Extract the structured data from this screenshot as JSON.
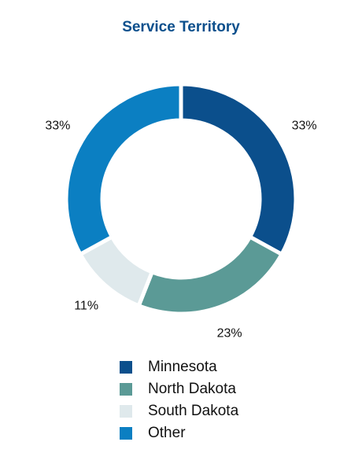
{
  "chart_data": {
    "type": "pie",
    "title": "Service Territory",
    "categories": [
      "Minnesota",
      "North Dakota",
      "South Dakota",
      "Other"
    ],
    "values": [
      33,
      23,
      11,
      33
    ],
    "data_labels": [
      "33%",
      "23%",
      "11%",
      "33%"
    ],
    "colors": [
      "#0b4f8c",
      "#5b9a96",
      "#dfe9ec",
      "#0b7fc2"
    ],
    "donut": true,
    "legend_position": "bottom",
    "start_angle_deg": 0,
    "direction": "clockwise"
  },
  "legend": {
    "items": [
      {
        "label": "Minnesota",
        "color": "#0b4f8c"
      },
      {
        "label": "North Dakota",
        "color": "#5b9a96"
      },
      {
        "label": "South Dakota",
        "color": "#dfe9ec"
      },
      {
        "label": "Other",
        "color": "#0b7fc2"
      }
    ]
  }
}
